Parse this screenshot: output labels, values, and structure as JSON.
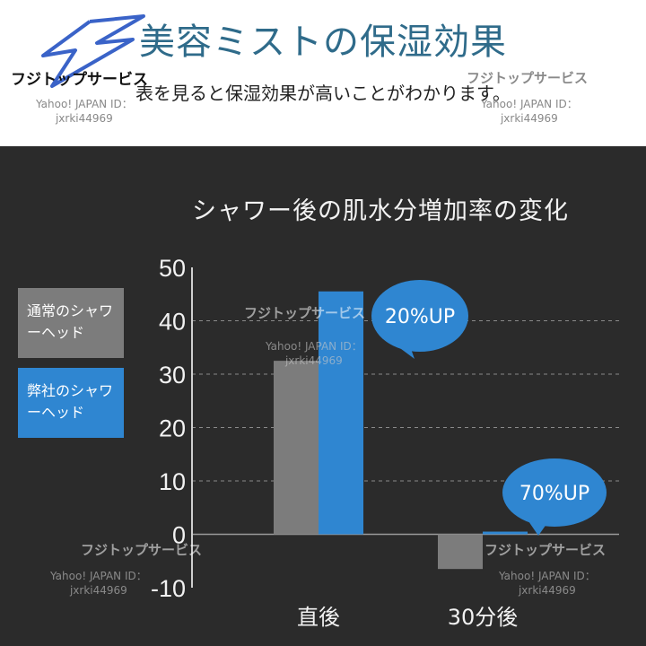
{
  "header": {
    "headline": "美容ミストの保湿効果",
    "subline": "表を見ると保湿効果が高いことがわかります。"
  },
  "watermark": {
    "shop": "フジトップサービス",
    "id_line1": "Yahoo! JAPAN ID：",
    "id_line2": "jxrki44969"
  },
  "legend": {
    "normal": "通常のシャワーヘッド",
    "ours": "弊社のシャワーヘッド"
  },
  "colors": {
    "normal": "#7c7c7c",
    "ours": "#2f86d1",
    "background": "#2b2b2b",
    "callout": "#2f86d1"
  },
  "chart_data": {
    "type": "bar",
    "title": "シャワー後の肌水分増加率の変化",
    "categories": [
      "直後",
      "30分後"
    ],
    "series": [
      {
        "name": "通常のシャワーヘッド",
        "values": [
          32.5,
          -6.5
        ]
      },
      {
        "name": "弊社のシャワーヘッド",
        "values": [
          45.5,
          0.5
        ]
      }
    ],
    "ylim": [
      -10,
      50
    ],
    "yticks": [
      50,
      40,
      30,
      20,
      10,
      0,
      -10
    ],
    "grid": true,
    "legend_position": "left",
    "annotations": [
      {
        "text": "20%UP",
        "category": "直後"
      },
      {
        "text": "70%UP",
        "category": "30分後"
      }
    ]
  }
}
